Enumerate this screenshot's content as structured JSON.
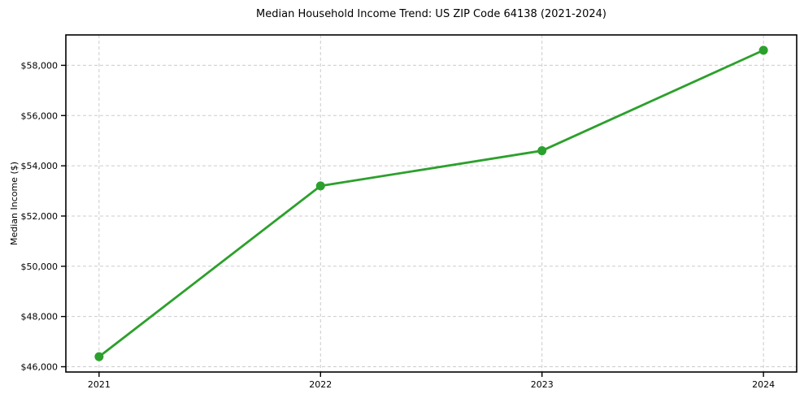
{
  "chart_data": {
    "type": "line",
    "title": "Median Household Income Trend: US ZIP Code 64138 (2021-2024)",
    "xlabel": "",
    "ylabel": "Median Income ($)",
    "x": [
      2021,
      2022,
      2023,
      2024
    ],
    "x_tick_labels": [
      "2021",
      "2022",
      "2023",
      "2024"
    ],
    "series": [
      {
        "name": "Median Household Income",
        "values": [
          46400,
          53200,
          54600,
          58600
        ],
        "color": "#2ca02c",
        "line_width": 2.8,
        "marker": "circle",
        "marker_radius": 5.5
      }
    ],
    "y_ticks": [
      46000,
      48000,
      50000,
      52000,
      54000,
      56000,
      58000
    ],
    "y_tick_labels": [
      "$46,000",
      "$48,000",
      "$50,000",
      "$52,000",
      "$54,000",
      "$56,000",
      "$58,000"
    ],
    "xlim": [
      2020.85,
      2024.15
    ],
    "ylim": [
      45790,
      59210
    ],
    "grid": true,
    "grid_style": "dashed",
    "grid_color": "#cccccc",
    "axes_color": "#000000",
    "text_color": "#000000",
    "background": "#ffffff",
    "legend": false
  }
}
